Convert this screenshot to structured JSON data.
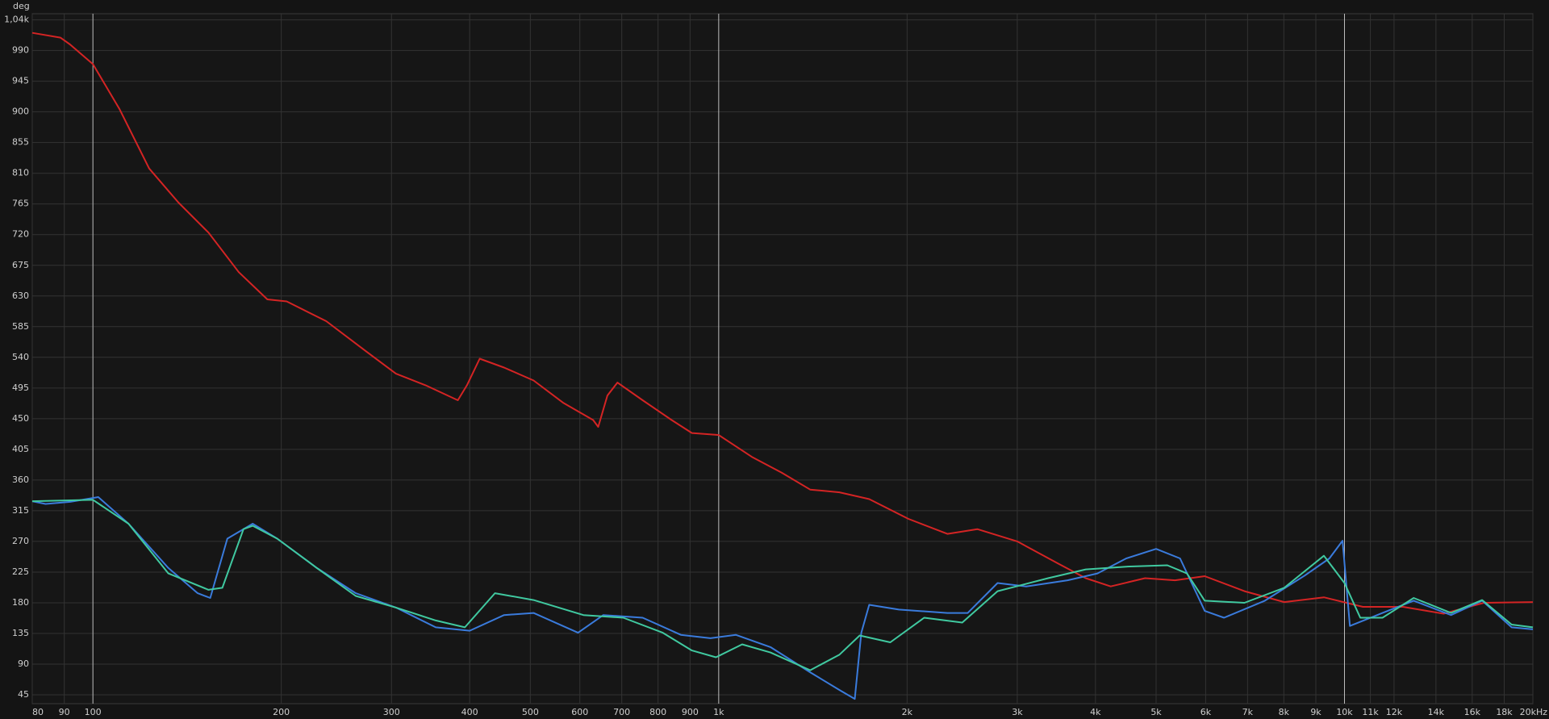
{
  "chart_data": {
    "type": "line",
    "y_axis_label": "deg",
    "xscale": "log",
    "xlim": [
      80,
      20000
    ],
    "ylim": [
      32,
      1044
    ],
    "grid": true,
    "xticks": [
      80,
      90,
      100,
      200,
      300,
      400,
      500,
      600,
      700,
      800,
      900,
      {
        "value": 1000,
        "label": "1k"
      },
      {
        "value": 2000,
        "label": "2k"
      },
      {
        "value": 3000,
        "label": "3k"
      },
      {
        "value": 4000,
        "label": "4k"
      },
      {
        "value": 5000,
        "label": "5k"
      },
      {
        "value": 6000,
        "label": "6k"
      },
      {
        "value": 7000,
        "label": "7k"
      },
      {
        "value": 8000,
        "label": "8k"
      },
      {
        "value": 9000,
        "label": "9k"
      },
      {
        "value": 10000,
        "label": "10k"
      },
      {
        "value": 11000,
        "label": "11k"
      },
      {
        "value": 12000,
        "label": "12k"
      },
      {
        "value": 14000,
        "label": "14k"
      },
      {
        "value": 16000,
        "label": "16k"
      },
      {
        "value": 18000,
        "label": "18k"
      },
      {
        "value": 20000,
        "label": "20kHz"
      }
    ],
    "yticks": [
      45,
      90,
      135,
      180,
      225,
      270,
      315,
      360,
      405,
      450,
      495,
      540,
      585,
      630,
      675,
      720,
      765,
      810,
      855,
      900,
      945,
      990,
      {
        "value": 1035,
        "label": "1,04k"
      }
    ],
    "series": [
      {
        "color": "#d42424",
        "x": [
          80,
          88.7,
          91.9,
          100,
          110.3,
          123,
          137,
          153,
          171,
          190,
          204,
          236,
          273,
          305,
          340,
          383,
          396,
          415,
          454,
          506,
          565,
          630,
          642,
          664,
          689,
          756,
          841,
          906,
          1000,
          1130,
          1260,
          1400,
          1560,
          1740,
          2010,
          2320,
          2590,
          3000,
          3480,
          3860,
          4230,
          4800,
          5360,
          5980,
          6920,
          8010,
          9270,
          10700,
          12400,
          14400,
          16700,
          20000
        ],
        "values": [
          1016,
          1009,
          999,
          970,
          904,
          817,
          767,
          723,
          665,
          625,
          622,
          593,
          549,
          516,
          499,
          477,
          499,
          538,
          525,
          506,
          473,
          448,
          438,
          484,
          503,
          477,
          448,
          429,
          426,
          394,
          371,
          346,
          342,
          332,
          303,
          281,
          288,
          270,
          238,
          216,
          204,
          216,
          213,
          219,
          197,
          181,
          188,
          174,
          174,
          164,
          180,
          181
        ]
      },
      {
        "color": "#3a7bdc",
        "x": [
          80,
          84,
          92,
          102,
          114,
          132,
          147,
          154,
          164,
          180,
          197,
          228,
          263,
          305,
          353,
          400,
          454,
          506,
          596,
          654,
          756,
          870,
          970,
          1065,
          1210,
          1400,
          1560,
          1650,
          1690,
          1740,
          1940,
          2320,
          2500,
          2790,
          3100,
          3610,
          4030,
          4480,
          5000,
          5460,
          5980,
          6420,
          7460,
          8640,
          9460,
          9930,
          10200,
          11500,
          12900,
          14800,
          16600,
          18500,
          20000
        ],
        "values": [
          329,
          325,
          328,
          335,
          296,
          231,
          194,
          187,
          274,
          296,
          274,
          231,
          194,
          173,
          144,
          139,
          162,
          165,
          136,
          162,
          158,
          133,
          128,
          133,
          115,
          78,
          52,
          39,
          136,
          177,
          170,
          165,
          165,
          209,
          204,
          213,
          223,
          245,
          259,
          245,
          168,
          158,
          183,
          220,
          245,
          271,
          146,
          165,
          183,
          162,
          183,
          144,
          141
        ]
      },
      {
        "color": "#40c9a0",
        "x": [
          80,
          100,
          114,
          132,
          153,
          161,
          174,
          180,
          197,
          228,
          263,
          305,
          353,
          393,
          439,
          506,
          608,
          704,
          814,
          906,
          990,
          1090,
          1210,
          1400,
          1560,
          1680,
          1880,
          2130,
          2450,
          2790,
          3360,
          3860,
          4480,
          5210,
          5600,
          5980,
          6920,
          8010,
          9270,
          10000,
          10600,
          11500,
          12900,
          14800,
          16600,
          18500,
          20000
        ],
        "values": [
          329,
          331,
          296,
          223,
          199,
          202,
          288,
          293,
          274,
          231,
          190,
          173,
          154,
          144,
          194,
          184,
          162,
          158,
          136,
          110,
          100,
          119,
          107,
          81,
          104,
          132,
          122,
          158,
          151,
          197,
          216,
          229,
          233,
          235,
          223,
          183,
          180,
          202,
          249,
          209,
          158,
          158,
          187,
          165,
          184,
          148,
          144
        ]
      }
    ]
  }
}
